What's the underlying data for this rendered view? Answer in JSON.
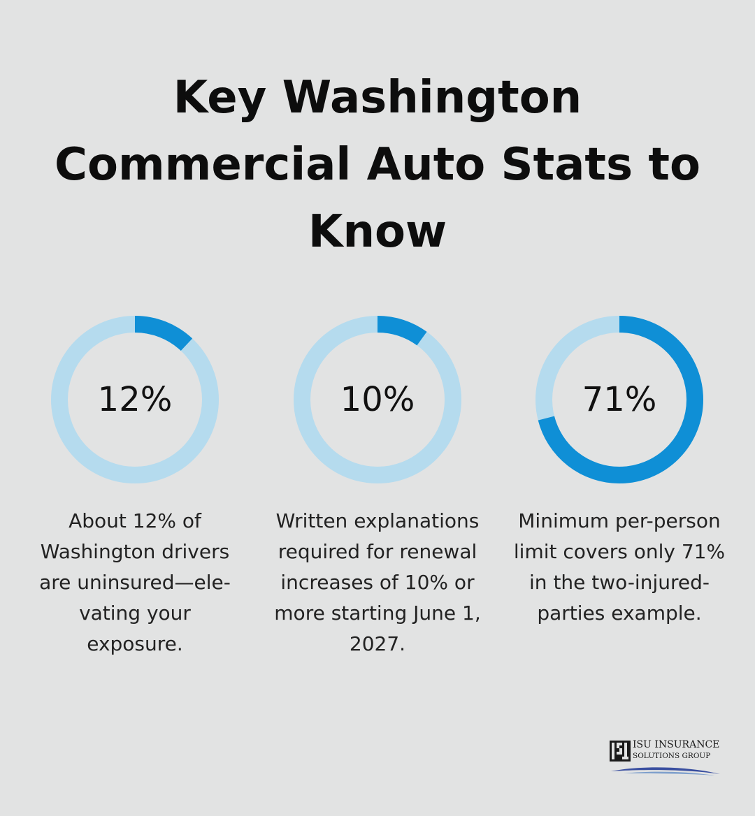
{
  "title": {
    "lines": [
      "Key Washington",
      "Commercial Auto Stats to",
      "Know"
    ]
  },
  "colors": {
    "background": "#e2e3e3",
    "ring_track": "#b5dbee",
    "ring_fill": "#0f8fd6"
  },
  "stats": [
    {
      "value_label": "12%",
      "percent": 12,
      "description_lines": [
        "About 12% of",
        "Washington drivers",
        "are uninsured—ele-",
        "vating your",
        "exposure."
      ]
    },
    {
      "value_label": "10%",
      "percent": 10,
      "description_lines": [
        "Written explanations",
        "required for renewal",
        "increases of 10% or",
        "more starting June 1,",
        "2027."
      ]
    },
    {
      "value_label": "71%",
      "percent": 71,
      "description_lines": [
        "Minimum per-person",
        "limit covers only 71%",
        "in the two-injured-",
        "parties example."
      ]
    }
  ],
  "logo": {
    "mark_letters": "ISU",
    "line1": "ISU INSURANCE",
    "line2": "SOLUTIONS GROUP"
  }
}
